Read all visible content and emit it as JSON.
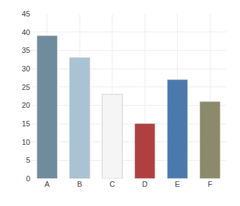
{
  "chart_data": {
    "type": "bar",
    "categories": [
      "A",
      "B",
      "C",
      "D",
      "E",
      "F"
    ],
    "values": [
      39,
      33,
      23,
      15,
      27,
      21
    ],
    "colors": [
      "#6e8c9e",
      "#a8c3d4",
      "#f5f5f5",
      "#b04040",
      "#4a7aad",
      "#8b8b6b"
    ],
    "ylim": [
      0,
      45
    ],
    "yticks": [
      0,
      5,
      10,
      15,
      20,
      25,
      30,
      35,
      40,
      45
    ],
    "grid": true
  }
}
